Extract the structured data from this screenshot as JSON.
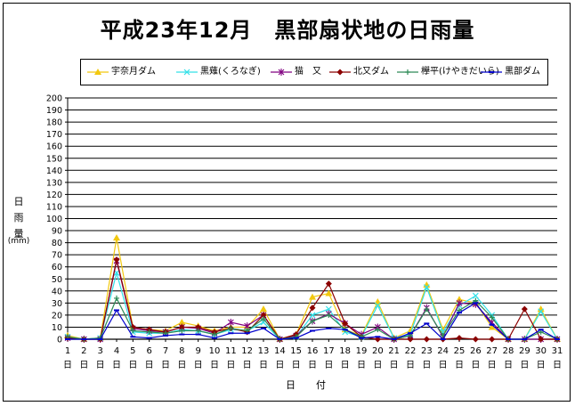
{
  "chart_data": {
    "type": "line",
    "title": "平成23年12月　黒部扇状地の日雨量",
    "ylabel_lines": [
      "日",
      "雨",
      "量",
      "(mm)"
    ],
    "xlabel": "日　付",
    "ylim": [
      0,
      200
    ],
    "ytick_step": 10,
    "grid": true,
    "legend_position": "top",
    "day_suffix": "日",
    "x": [
      1,
      2,
      3,
      4,
      5,
      6,
      7,
      8,
      9,
      10,
      11,
      12,
      13,
      14,
      15,
      16,
      17,
      18,
      19,
      20,
      21,
      22,
      23,
      24,
      25,
      26,
      27,
      28,
      29,
      30,
      31
    ],
    "series": [
      {
        "name": "宇奈月ダム",
        "color": "#f2c80f",
        "marker": "triangle",
        "values": [
          3,
          0,
          1,
          84,
          10,
          8,
          7,
          14,
          11,
          7,
          10,
          10,
          25,
          0,
          4,
          35,
          38,
          8,
          3,
          31,
          1,
          7,
          45,
          8,
          33,
          30,
          10,
          0,
          0,
          25,
          0
        ]
      },
      {
        "name": "黒薙(くろなぎ)",
        "color": "#33e0e8",
        "marker": "x",
        "values": [
          2,
          0,
          1,
          55,
          6,
          5,
          5,
          8,
          7,
          4,
          8,
          7,
          14,
          0,
          2,
          20,
          25,
          6,
          2,
          28,
          1,
          4,
          43,
          6,
          28,
          36,
          20,
          0,
          0,
          23,
          0
        ]
      },
      {
        "name": "猫　又",
        "color": "#800080",
        "marker": "star",
        "values": [
          1,
          0,
          0,
          65,
          9,
          7,
          6,
          10,
          9,
          5,
          14,
          11,
          20,
          0,
          3,
          15,
          21,
          13,
          4,
          10,
          0,
          3,
          26,
          2,
          30,
          29,
          14,
          0,
          0,
          0,
          0
        ]
      },
      {
        "name": "北又ダム",
        "color": "#8b0000",
        "marker": "diamond",
        "values": [
          1,
          0,
          0,
          66,
          10,
          8,
          6,
          10,
          10,
          6,
          9,
          6,
          20,
          0,
          4,
          26,
          46,
          13,
          2,
          0,
          0,
          0,
          0,
          0,
          1,
          0,
          0,
          0,
          25,
          0,
          0
        ]
      },
      {
        "name": "欅平(けやきだいら)",
        "color": "#2e8b57",
        "marker": "plus",
        "values": [
          2,
          0,
          1,
          34,
          7,
          6,
          5,
          7,
          7,
          4,
          9,
          7,
          17,
          0,
          2,
          15,
          20,
          8,
          2,
          8,
          0,
          3,
          25,
          3,
          24,
          32,
          18,
          0,
          0,
          6,
          0
        ]
      },
      {
        "name": "黒部ダム",
        "color": "#0000cc",
        "marker": "dash",
        "values": [
          0,
          0,
          0,
          24,
          2,
          1,
          3,
          4,
          4,
          1,
          5,
          5,
          9,
          0,
          1,
          7,
          9,
          8,
          1,
          2,
          0,
          5,
          13,
          0,
          22,
          30,
          12,
          0,
          0,
          8,
          0
        ]
      }
    ]
  }
}
